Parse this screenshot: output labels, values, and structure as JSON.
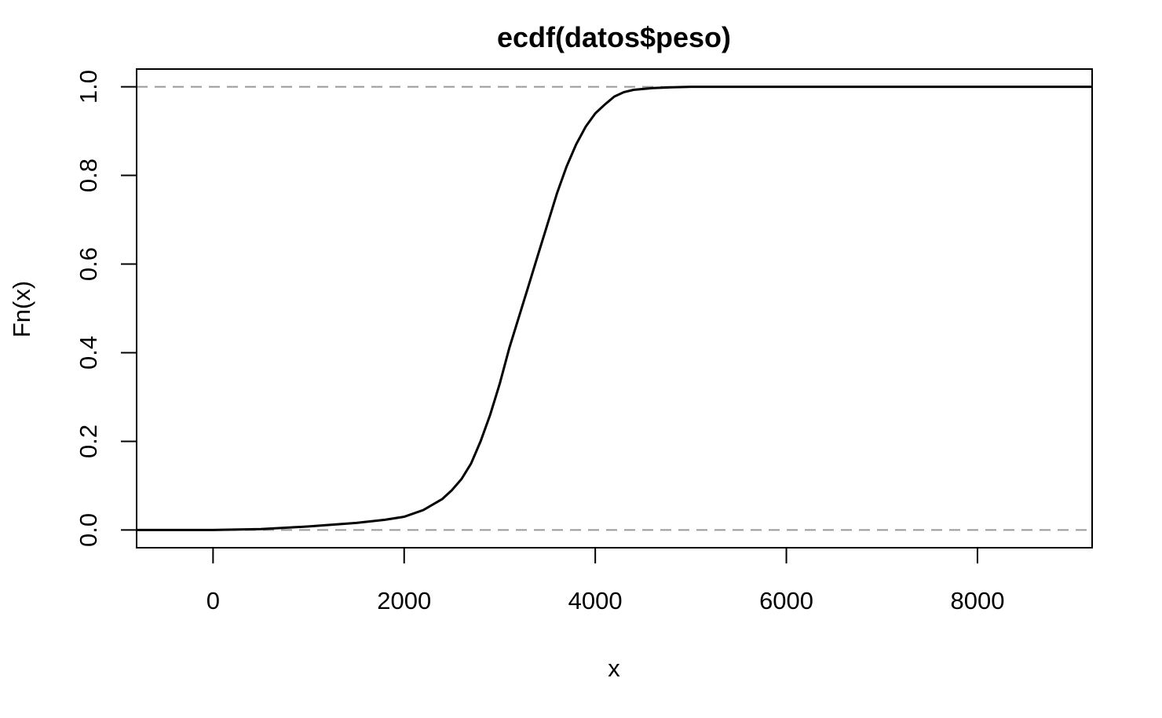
{
  "chart_data": {
    "type": "line",
    "title": "ecdf(datos$peso)",
    "xlabel": "x",
    "ylabel": "Fn(x)",
    "xlim": [
      -800,
      9200
    ],
    "ylim": [
      -0.04,
      1.04
    ],
    "x_ticks": [
      "0",
      "2000",
      "4000",
      "6000",
      "8000"
    ],
    "y_ticks": [
      "0.0",
      "0.2",
      "0.4",
      "0.6",
      "0.8",
      "1.0"
    ],
    "reference_lines": [
      0,
      1
    ],
    "grid": false,
    "legend": "none",
    "series": [
      {
        "x": [
          -800,
          0,
          500,
          1000,
          1500,
          1800,
          2000,
          2200,
          2400,
          2500,
          2600,
          2700,
          2800,
          2900,
          3000,
          3100,
          3200,
          3300,
          3400,
          3500,
          3600,
          3700,
          3800,
          3900,
          4000,
          4100,
          4200,
          4300,
          4400,
          4600,
          4800,
          5000,
          5500,
          6000,
          7000,
          8000,
          9200
        ],
        "y": [
          0.0,
          0.0,
          0.002,
          0.008,
          0.016,
          0.023,
          0.03,
          0.045,
          0.07,
          0.09,
          0.115,
          0.15,
          0.2,
          0.26,
          0.33,
          0.41,
          0.48,
          0.55,
          0.62,
          0.69,
          0.76,
          0.82,
          0.87,
          0.91,
          0.94,
          0.96,
          0.978,
          0.988,
          0.993,
          0.997,
          0.999,
          1.0,
          1.0,
          1.0,
          1.0,
          1.0,
          1.0
        ],
        "color": "#000000"
      }
    ],
    "reference_color": "#999999"
  }
}
